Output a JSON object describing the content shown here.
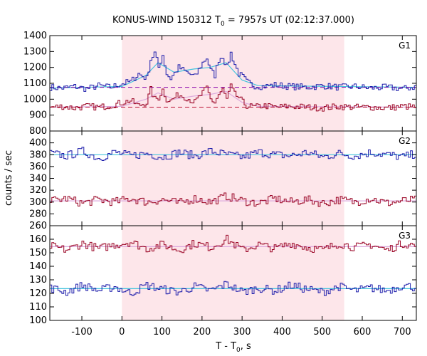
{
  "chart_data": {
    "type": "line",
    "title": "KONUS-WIND 150312 T",
    "title_sub": "0",
    "title_rest": " = 7957s UT (02:12:37.000)",
    "xlabel": "T - T",
    "xlabel_sub": "0",
    "xlabel_rest": ", s",
    "ylabel": "counts / sec",
    "xlim": [
      -180,
      735
    ],
    "x_ticks": [
      -100,
      0,
      100,
      200,
      300,
      400,
      500,
      600,
      700
    ],
    "x_tick_labels": [
      "-100",
      "0",
      "100",
      "200",
      "300",
      "400",
      "500",
      "600",
      "700"
    ],
    "shaded_interval": [
      0,
      555
    ],
    "colors": {
      "high": "#1a1aaa",
      "low": "#990022",
      "fit": "#44c4dd",
      "fit_low": "#ddaadd",
      "dashed_high": "#8800aa",
      "dashed_low": "#bb1133",
      "shade": "#fde6ea"
    },
    "panels": [
      {
        "label": "G1",
        "ylim": [
          800,
          1400
        ],
        "y_ticks": [
          800,
          900,
          1000,
          1100,
          1200,
          1300,
          1400
        ],
        "y_tick_labels": [
          "800",
          "900",
          "1000",
          "1100",
          "1200",
          "1300",
          "1400"
        ],
        "bin_width": 5,
        "dashed_levels": [
          1075,
          950
        ],
        "series": [
          {
            "color_key": "high",
            "x": [
              -180,
              -150,
              -120,
              -90,
              -60,
              -30,
              0,
              20,
              40,
              60,
              70,
              80,
              90,
              100,
              110,
              120,
              140,
              160,
              180,
              200,
              210,
              220,
              230,
              240,
              250,
              260,
              270,
              280,
              290,
              300,
              310,
              320,
              330,
              350,
              380,
              420,
              460,
              500,
              540,
              580,
              620,
              660,
              700,
              735
            ],
            "values": [
              1075,
              1070,
              1080,
              1065,
              1085,
              1075,
              1100,
              1110,
              1160,
              1130,
              1250,
              1290,
              1200,
              1280,
              1160,
              1130,
              1200,
              1170,
              1140,
              1230,
              1260,
              1180,
              1150,
              1250,
              1270,
              1200,
              1290,
              1220,
              1160,
              1140,
              1110,
              1095,
              1085,
              1080,
              1090,
              1080,
              1075,
              1085,
              1075,
              1080,
              1070,
              1075,
              1065,
              1080
            ]
          },
          {
            "color_key": "low",
            "x": [
              -180,
              -150,
              -120,
              -90,
              -60,
              -30,
              0,
              20,
              40,
              60,
              70,
              80,
              90,
              100,
              110,
              120,
              140,
              160,
              180,
              200,
              210,
              220,
              230,
              240,
              250,
              260,
              270,
              280,
              290,
              300,
              310,
              320,
              330,
              350,
              380,
              420,
              460,
              500,
              540,
              580,
              620,
              660,
              700,
              735
            ],
            "values": [
              950,
              955,
              945,
              955,
              950,
              960,
              980,
              990,
              960,
              980,
              1060,
              1000,
              1010,
              1060,
              1000,
              990,
              1030,
              1010,
              980,
              1040,
              1070,
              1000,
              980,
              1030,
              1060,
              1000,
              1080,
              1030,
              1010,
              980,
              960,
              955,
              950,
              960,
              950,
              955,
              950,
              945,
              955,
              950,
              950,
              945,
              955,
              950
            ]
          }
        ],
        "fits": [
          {
            "color_key": "fit",
            "x": [
              -180,
              0,
              60,
              90,
              130,
              180,
              220,
              260,
              300,
              340,
              735
            ],
            "values": [
              1070,
              1080,
              1150,
              1230,
              1170,
              1190,
              1200,
              1230,
              1120,
              1085,
              1075
            ]
          },
          {
            "color_key": "fit_low",
            "x": [
              -180,
              0,
              60,
              90,
              130,
              180,
              220,
              260,
              300,
              340,
              735
            ],
            "values": [
              950,
              955,
              1000,
              1040,
              1000,
              1020,
              1030,
              1050,
              980,
              955,
              950
            ]
          }
        ]
      },
      {
        "label": "G2",
        "ylim": [
          260,
          420
        ],
        "y_ticks": [
          260,
          280,
          300,
          320,
          340,
          360,
          380,
          400
        ],
        "y_tick_labels": [
          "260",
          "280",
          "300",
          "320",
          "340",
          "360",
          "380",
          "400"
        ],
        "bin_width": 5,
        "series": [
          {
            "color_key": "high",
            "x": [
              -180,
              -140,
              -100,
              -60,
              -20,
              20,
              60,
              100,
              140,
              180,
              220,
              260,
              300,
              340,
              380,
              420,
              460,
              500,
              540,
              580,
              620,
              660,
              700,
              735
            ],
            "values": [
              382,
              378,
              386,
              374,
              384,
              378,
              382,
              376,
              384,
              378,
              386,
              380,
              376,
              384,
              380,
              378,
              384,
              376,
              382,
              378,
              384,
              380,
              376,
              382
            ]
          },
          {
            "color_key": "low",
            "x": [
              -180,
              -140,
              -100,
              -60,
              -20,
              20,
              60,
              100,
              140,
              180,
              220,
              260,
              300,
              340,
              380,
              420,
              460,
              500,
              540,
              580,
              620,
              660,
              700,
              735
            ],
            "values": [
              302,
              306,
              298,
              304,
              300,
              306,
              300,
              304,
              298,
              306,
              300,
              310,
              302,
              298,
              306,
              300,
              304,
              298,
              304,
              300,
              306,
              298,
              302,
              304
            ]
          }
        ],
        "fits": [
          {
            "color_key": "fit",
            "x": [
              -180,
              735
            ],
            "values": [
              380,
              380
            ]
          },
          {
            "color_key": "fit_low",
            "x": [
              -180,
              735
            ],
            "values": [
              302,
              302
            ]
          }
        ]
      },
      {
        "label": "G3",
        "ylim": [
          100,
          170
        ],
        "y_ticks": [
          100,
          110,
          120,
          130,
          140,
          150,
          160
        ],
        "y_tick_labels": [
          "100",
          "110",
          "120",
          "130",
          "140",
          "150",
          "160"
        ],
        "bin_width": 5,
        "series": [
          {
            "color_key": "low",
            "x": [
              -180,
              -140,
              -100,
              -60,
              -20,
              20,
              60,
              100,
              140,
              180,
              220,
              260,
              300,
              340,
              380,
              420,
              460,
              500,
              540,
              580,
              620,
              660,
              700,
              735
            ],
            "values": [
              155,
              152,
              157,
              153,
              156,
              158,
              153,
              156,
              152,
              157,
              154,
              160,
              152,
              156,
              153,
              157,
              154,
              152,
              157,
              154,
              156,
              152,
              157,
              155
            ]
          },
          {
            "color_key": "high",
            "x": [
              -180,
              -140,
              -100,
              -60,
              -20,
              20,
              60,
              100,
              140,
              180,
              220,
              260,
              300,
              340,
              380,
              420,
              460,
              500,
              540,
              580,
              620,
              660,
              700,
              735
            ],
            "values": [
              124,
              121,
              126,
              122,
              125,
              120,
              126,
              123,
              121,
              125,
              122,
              127,
              121,
              124,
              122,
              126,
              123,
              121,
              125,
              122,
              124,
              122,
              126,
              124
            ]
          }
        ],
        "fits": [
          {
            "color_key": "fit_low",
            "x": [
              -180,
              735
            ],
            "values": [
              154.5,
              154.5
            ]
          },
          {
            "color_key": "fit",
            "x": [
              -180,
              735
            ],
            "values": [
              123.5,
              123.5
            ]
          }
        ]
      }
    ]
  }
}
